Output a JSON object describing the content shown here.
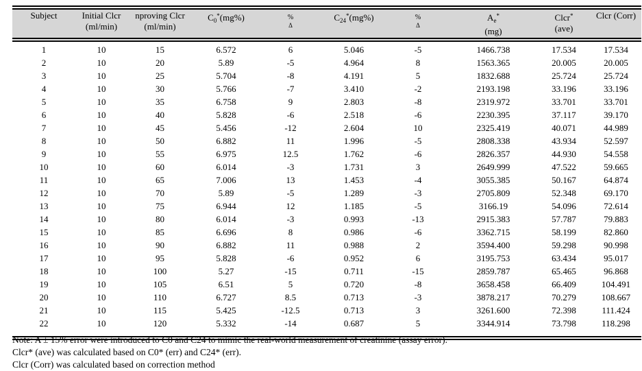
{
  "table": {
    "headers": {
      "subject": "Subject",
      "initial_l1": "Initial Clcr",
      "initial_l2": "(ml/min)",
      "improving_l1": "nproving Clcr",
      "improving_l2": "(ml/min)",
      "c0_base": "C",
      "c0_sub": "0",
      "c0_sup": "*",
      "c0_unit": "(mg%)",
      "pct1_l1": "%",
      "pct1_l2": "Δ",
      "c24_base": "C",
      "c24_sub": "24",
      "c24_sup": "*",
      "c24_unit": "(mg%)",
      "pct2_l1": "%",
      "pct2_l2": "Δ",
      "ae_base": "A",
      "ae_sub": "e",
      "ae_sup": "*",
      "ae_l2": "(mg)",
      "clcr_ave_base": "Clcr",
      "clcr_ave_sup": "*",
      "clcr_ave_l2": "(ave)",
      "clcr_corr": "Clcr (Corr)"
    },
    "rows": [
      [
        "1",
        "10",
        "15",
        "6.572",
        "6",
        "5.046",
        "-5",
        "1466.738",
        "17.534",
        "17.534"
      ],
      [
        "2",
        "10",
        "20",
        "5.89",
        "-5",
        "4.964",
        "8",
        "1563.365",
        "20.005",
        "20.005"
      ],
      [
        "3",
        "10",
        "25",
        "5.704",
        "-8",
        "4.191",
        "5",
        "1832.688",
        "25.724",
        "25.724"
      ],
      [
        "4",
        "10",
        "30",
        "5.766",
        "-7",
        "3.410",
        "-2",
        "2193.198",
        "33.196",
        "33.196"
      ],
      [
        "5",
        "10",
        "35",
        "6.758",
        "9",
        "2.803",
        "-8",
        "2319.972",
        "33.701",
        "33.701"
      ],
      [
        "6",
        "10",
        "40",
        "5.828",
        "-6",
        "2.518",
        "-6",
        "2230.395",
        "37.117",
        "39.170"
      ],
      [
        "7",
        "10",
        "45",
        "5.456",
        "-12",
        "2.604",
        "10",
        "2325.419",
        "40.071",
        "44.989"
      ],
      [
        "8",
        "10",
        "50",
        "6.882",
        "11",
        "1.996",
        "-5",
        "2808.338",
        "43.934",
        "52.597"
      ],
      [
        "9",
        "10",
        "55",
        "6.975",
        "12.5",
        "1.762",
        "-6",
        "2826.357",
        "44.930",
        "54.558"
      ],
      [
        "10",
        "10",
        "60",
        "6.014",
        "-3",
        "1.731",
        "3",
        "2649.999",
        "47.522",
        "59.665"
      ],
      [
        "11",
        "10",
        "65",
        "7.006",
        "13",
        "1.453",
        "-4",
        "3055.385",
        "50.167",
        "64.874"
      ],
      [
        "12",
        "10",
        "70",
        "5.89",
        "-5",
        "1.289",
        "-3",
        "2705.809",
        "52.348",
        "69.170"
      ],
      [
        "13",
        "10",
        "75",
        "6.944",
        "12",
        "1.185",
        "-5",
        "3166.19",
        "54.096",
        "72.614"
      ],
      [
        "14",
        "10",
        "80",
        "6.014",
        "-3",
        "0.993",
        "-13",
        "2915.383",
        "57.787",
        "79.883"
      ],
      [
        "15",
        "10",
        "85",
        "6.696",
        "8",
        "0.986",
        "-6",
        "3362.715",
        "58.199",
        "82.860"
      ],
      [
        "16",
        "10",
        "90",
        "6.882",
        "11",
        "0.988",
        "2",
        "3594.400",
        "59.298",
        "90.998"
      ],
      [
        "17",
        "10",
        "95",
        "5.828",
        "-6",
        "0.952",
        "6",
        "3195.753",
        "63.434",
        "95.017"
      ],
      [
        "18",
        "10",
        "100",
        "5.27",
        "-15",
        "0.711",
        "-15",
        "2859.787",
        "65.465",
        "96.868"
      ],
      [
        "19",
        "10",
        "105",
        "6.51",
        "5",
        "0.720",
        "-8",
        "3658.458",
        "66.409",
        "104.491"
      ],
      [
        "20",
        "10",
        "110",
        "6.727",
        "8.5",
        "0.713",
        "-3",
        "3878.217",
        "70.279",
        "108.667"
      ],
      [
        "21",
        "10",
        "115",
        "5.425",
        "-12.5",
        "0.713",
        "3",
        "3261.600",
        "72.398",
        "111.424"
      ],
      [
        "22",
        "10",
        "120",
        "5.332",
        "-14",
        "0.687",
        "5",
        "3344.914",
        "73.798",
        "118.298"
      ]
    ]
  },
  "notes": [
    "Note: A ± 15% error were introduced to C0 and C24 to mimic the real-world measurement of creatinine (assay error).",
    "Clcr* (ave) was calculated based on C0* (err) and C24* (err).",
    "Clcr (Corr) was calculated based on correction method"
  ],
  "colors": {
    "header_bg": "#d6d6d6",
    "border": "#000000",
    "text": "#000000",
    "page_bg": "#ffffff"
  }
}
